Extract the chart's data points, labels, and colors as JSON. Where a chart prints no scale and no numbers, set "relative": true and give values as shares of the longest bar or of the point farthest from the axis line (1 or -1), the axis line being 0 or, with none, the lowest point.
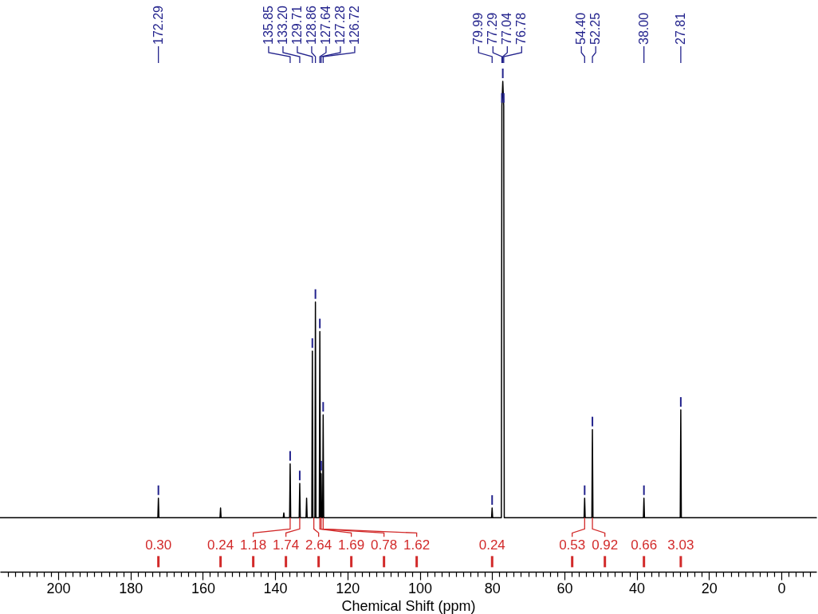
{
  "chart_data": {
    "type": "line",
    "relative": true,
    "xlabel": "Chemical Shift (ppm)",
    "xlim": [
      216.1,
      -9.7
    ],
    "xticks": [
      {
        "value": 214,
        "label": null
      },
      {
        "value": 212,
        "label": null
      },
      {
        "value": 210,
        "label": null
      },
      {
        "value": 208,
        "label": null
      },
      {
        "value": 206,
        "label": null
      },
      {
        "value": 204,
        "label": null
      },
      {
        "value": 202,
        "label": null
      },
      200,
      {
        "value": 198,
        "label": null
      },
      {
        "value": 196,
        "label": null
      },
      {
        "value": 194,
        "label": null
      },
      {
        "value": 192,
        "label": null
      },
      {
        "value": 190,
        "label": null
      },
      {
        "value": 188,
        "label": null
      },
      {
        "value": 186,
        "label": null
      },
      {
        "value": 184,
        "label": null
      },
      {
        "value": 182,
        "label": null
      },
      180,
      {
        "value": 178,
        "label": null
      },
      {
        "value": 176,
        "label": null
      },
      {
        "value": 174,
        "label": null
      },
      {
        "value": 172,
        "label": null
      },
      {
        "value": 170,
        "label": null
      },
      {
        "value": 168,
        "label": null
      },
      {
        "value": 166,
        "label": null
      },
      {
        "value": 164,
        "label": null
      },
      {
        "value": 162,
        "label": null
      },
      160,
      {
        "value": 158,
        "label": null
      },
      {
        "value": 156,
        "label": null
      },
      {
        "value": 154,
        "label": null
      },
      {
        "value": 152,
        "label": null
      },
      {
        "value": 150,
        "label": null
      },
      {
        "value": 148,
        "label": null
      },
      {
        "value": 146,
        "label": null
      },
      {
        "value": 144,
        "label": null
      },
      {
        "value": 142,
        "label": null
      },
      140,
      {
        "value": 138,
        "label": null
      },
      {
        "value": 136,
        "label": null
      },
      {
        "value": 134,
        "label": null
      },
      {
        "value": 132,
        "label": null
      },
      {
        "value": 130,
        "label": null
      },
      {
        "value": 128,
        "label": null
      },
      {
        "value": 126,
        "label": null
      },
      {
        "value": 124,
        "label": null
      },
      {
        "value": 122,
        "label": null
      },
      120,
      {
        "value": 118,
        "label": null
      },
      {
        "value": 116,
        "label": null
      },
      {
        "value": 114,
        "label": null
      },
      {
        "value": 112,
        "label": null
      },
      {
        "value": 110,
        "label": null
      },
      {
        "value": 108,
        "label": null
      },
      {
        "value": 106,
        "label": null
      },
      {
        "value": 104,
        "label": null
      },
      {
        "value": 102,
        "label": null
      },
      100,
      {
        "value": 98,
        "label": null
      },
      {
        "value": 96,
        "label": null
      },
      {
        "value": 94,
        "label": null
      },
      {
        "value": 92,
        "label": null
      },
      {
        "value": 90,
        "label": null
      },
      {
        "value": 88,
        "label": null
      },
      {
        "value": 86,
        "label": null
      },
      {
        "value": 84,
        "label": null
      },
      {
        "value": 82,
        "label": null
      },
      80,
      {
        "value": 78,
        "label": null
      },
      {
        "value": 76,
        "label": null
      },
      {
        "value": 74,
        "label": null
      },
      {
        "value": 72,
        "label": null
      },
      {
        "value": 70,
        "label": null
      },
      {
        "value": 68,
        "label": null
      },
      {
        "value": 66,
        "label": null
      },
      {
        "value": 64,
        "label": null
      },
      {
        "value": 62,
        "label": null
      },
      60,
      {
        "value": 58,
        "label": null
      },
      {
        "value": 56,
        "label": null
      },
      {
        "value": 54,
        "label": null
      },
      {
        "value": 52,
        "label": null
      },
      {
        "value": 50,
        "label": null
      },
      {
        "value": 48,
        "label": null
      },
      {
        "value": 46,
        "label": null
      },
      {
        "value": 44,
        "label": null
      },
      {
        "value": 42,
        "label": null
      },
      40,
      {
        "value": 38,
        "label": null
      },
      {
        "value": 36,
        "label": null
      },
      {
        "value": 34,
        "label": null
      },
      {
        "value": 32,
        "label": null
      },
      {
        "value": 30,
        "label": null
      },
      {
        "value": 28,
        "label": null
      },
      {
        "value": 26,
        "label": null
      },
      {
        "value": 24,
        "label": null
      },
      {
        "value": 22,
        "label": null
      },
      20,
      {
        "value": 18,
        "label": null
      },
      {
        "value": 16,
        "label": null
      },
      {
        "value": 14,
        "label": null
      },
      {
        "value": 12,
        "label": null
      },
      {
        "value": 10,
        "label": null
      },
      {
        "value": 8,
        "label": null
      },
      {
        "value": 6,
        "label": null
      },
      {
        "value": 4,
        "label": null
      },
      {
        "value": 2,
        "label": null
      },
      0,
      {
        "value": -2,
        "label": null
      },
      {
        "value": -4,
        "label": null
      },
      {
        "value": -6,
        "label": null
      },
      {
        "value": -8,
        "label": null
      }
    ],
    "x": [
      216.1,
      172.44,
      172.29,
      172.14,
      155.25,
      155.1,
      154.95,
      137.75,
      137.6,
      137.45,
      136.0,
      135.85,
      135.7,
      133.35,
      133.2,
      133.05,
      131.45,
      131.3,
      131.15,
      129.86,
      129.71,
      129.56,
      129.01,
      128.86,
      128.71,
      127.79,
      127.64,
      127.46,
      127.28,
      127.13,
      126.87,
      126.72,
      126.57,
      80.14,
      79.99,
      79.84,
      77.44,
      77.29,
      77.04,
      76.78,
      76.63,
      54.55,
      54.4,
      54.25,
      52.4,
      52.25,
      52.1,
      38.15,
      38.0,
      37.85,
      27.96,
      27.81,
      27.66,
      -9.7
    ],
    "series": [
      {
        "color": "#000000",
        "values": [
          0.11,
          0.11,
          0.15,
          0.11,
          0.11,
          0.13,
          0.11,
          0.11,
          0.12,
          0.11,
          0.11,
          0.22,
          0.11,
          0.11,
          0.18,
          0.11,
          0.11,
          0.15,
          0.11,
          0.11,
          0.45,
          0.11,
          0.11,
          0.55,
          0.11,
          0.11,
          0.49,
          0.11,
          0.2,
          0.11,
          0.11,
          0.32,
          0.11,
          0.11,
          0.13,
          0.11,
          0.11,
          0.95,
          1,
          0.95,
          0.11,
          0.11,
          0.15,
          0.11,
          0.11,
          0.29,
          0.11,
          0.11,
          0.15,
          0.11,
          0.11,
          0.33,
          0.11,
          0.11
        ]
      }
    ],
    "annotations": [
      {
        "text": "172.29",
        "x": 172.29
      },
      {
        "text": "135.85",
        "x": 135.85
      },
      {
        "text": "133.20",
        "x": 133.2
      },
      {
        "text": "129.71",
        "x": 129.71
      },
      {
        "text": "128.86",
        "x": 128.86
      },
      {
        "text": "127.64",
        "x": 127.64
      },
      {
        "text": "127.28",
        "x": 127.28
      },
      {
        "text": "126.72",
        "x": 126.72
      },
      {
        "text": "79.99",
        "x": 79.99
      },
      {
        "text": "77.29",
        "x": 77.29
      },
      {
        "text": "77.04",
        "x": 77.04
      },
      {
        "text": "76.78",
        "x": 76.78
      },
      {
        "text": "54.40",
        "x": 54.4
      },
      {
        "text": "52.25",
        "x": 52.25
      },
      {
        "text": "38.00",
        "x": 38.0
      },
      {
        "text": "27.81",
        "x": 27.81
      },
      {
        "text": "0.30",
        "x": 172.29,
        "y": 0.11
      },
      {
        "text": "0.24",
        "x": 155.1,
        "y": 0.11
      },
      {
        "text": "1.18",
        "x": 135.85,
        "y": 0.11
      },
      {
        "text": "1.74",
        "x": 133.2,
        "y": 0.11
      },
      {
        "text": "2.64",
        "x": 129.3,
        "y": 0.11
      },
      {
        "text": "1.69",
        "x": 127.64,
        "y": 0.11
      },
      {
        "text": "0.78",
        "x": 127.28,
        "y": 0.11
      },
      {
        "text": "1.62",
        "x": 126.72,
        "y": 0.11
      },
      {
        "text": "0.24",
        "x": 79.99,
        "y": 0.11
      },
      {
        "text": "0.53",
        "x": 54.4,
        "y": 0.11
      },
      {
        "text": "0.92",
        "x": 52.25,
        "y": 0.11
      },
      {
        "text": "0.66",
        "x": 38.0,
        "y": 0.11
      },
      {
        "text": "3.03",
        "x": 27.81,
        "y": 0.11
      }
    ]
  }
}
